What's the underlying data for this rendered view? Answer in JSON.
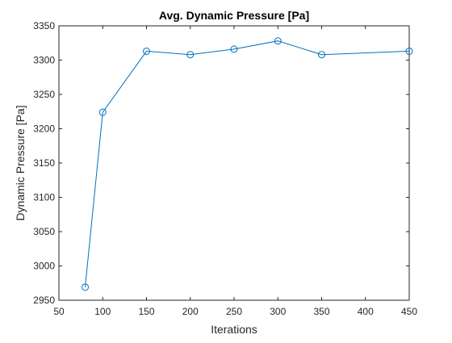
{
  "chart_data": {
    "type": "line",
    "title": "Avg. Dynamic Pressure [Pa]",
    "xlabel": "Iterations",
    "ylabel": "Dynamic Pressure [Pa]",
    "xlim": [
      50,
      450
    ],
    "ylim": [
      2950,
      3350
    ],
    "xticks": [
      50,
      100,
      150,
      200,
      250,
      300,
      350,
      400,
      450
    ],
    "yticks": [
      2950,
      3000,
      3050,
      3100,
      3150,
      3200,
      3250,
      3300,
      3350
    ],
    "grid": false,
    "marker": "circle",
    "series": [
      {
        "x": [
          80,
          100,
          150,
          200,
          250,
          300,
          350,
          450
        ],
        "y": [
          2969,
          3224,
          3313,
          3308,
          3316,
          3328,
          3308,
          3313
        ],
        "color": "#0072BD"
      }
    ]
  }
}
